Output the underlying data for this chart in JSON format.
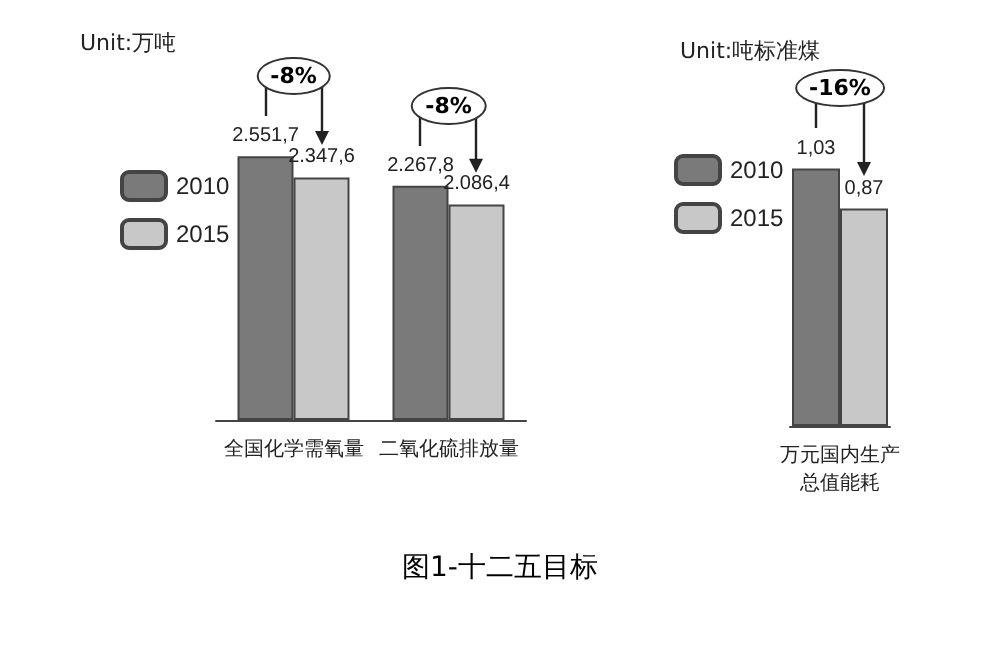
{
  "chart_data": [
    {
      "type": "bar",
      "ylabel": "Unit:万吨",
      "categories": [
        "全国化学需氧量",
        "二氧化硫排放量"
      ],
      "legend": "left",
      "series": [
        {
          "name": "2010",
          "color": "#7a7a7a",
          "values": [
            2551.7,
            2267.8
          ],
          "value_labels": [
            "2.551,7",
            "2.267,8"
          ]
        },
        {
          "name": "2015",
          "color": "#c8c8c8",
          "values": [
            2347.6,
            2086.4
          ],
          "value_labels": [
            "2.347,6",
            "2.086,4"
          ]
        }
      ],
      "annotations": [
        "-8%",
        "-8%",
        "图1-十二五目标"
      ]
    },
    {
      "type": "bar",
      "ylabel": "Unit:吨标准煤",
      "categories": [
        "万元国内生产总值能耗"
      ],
      "legend": "left",
      "series": [
        {
          "name": "2010",
          "color": "#7a7a7a",
          "values": [
            1.03
          ],
          "value_labels": [
            "1,03"
          ]
        },
        {
          "name": "2015",
          "color": "#c8c8c8",
          "values": [
            0.87
          ],
          "value_labels": [
            "0,87"
          ]
        }
      ],
      "annotations": [
        "-16%"
      ]
    }
  ]
}
